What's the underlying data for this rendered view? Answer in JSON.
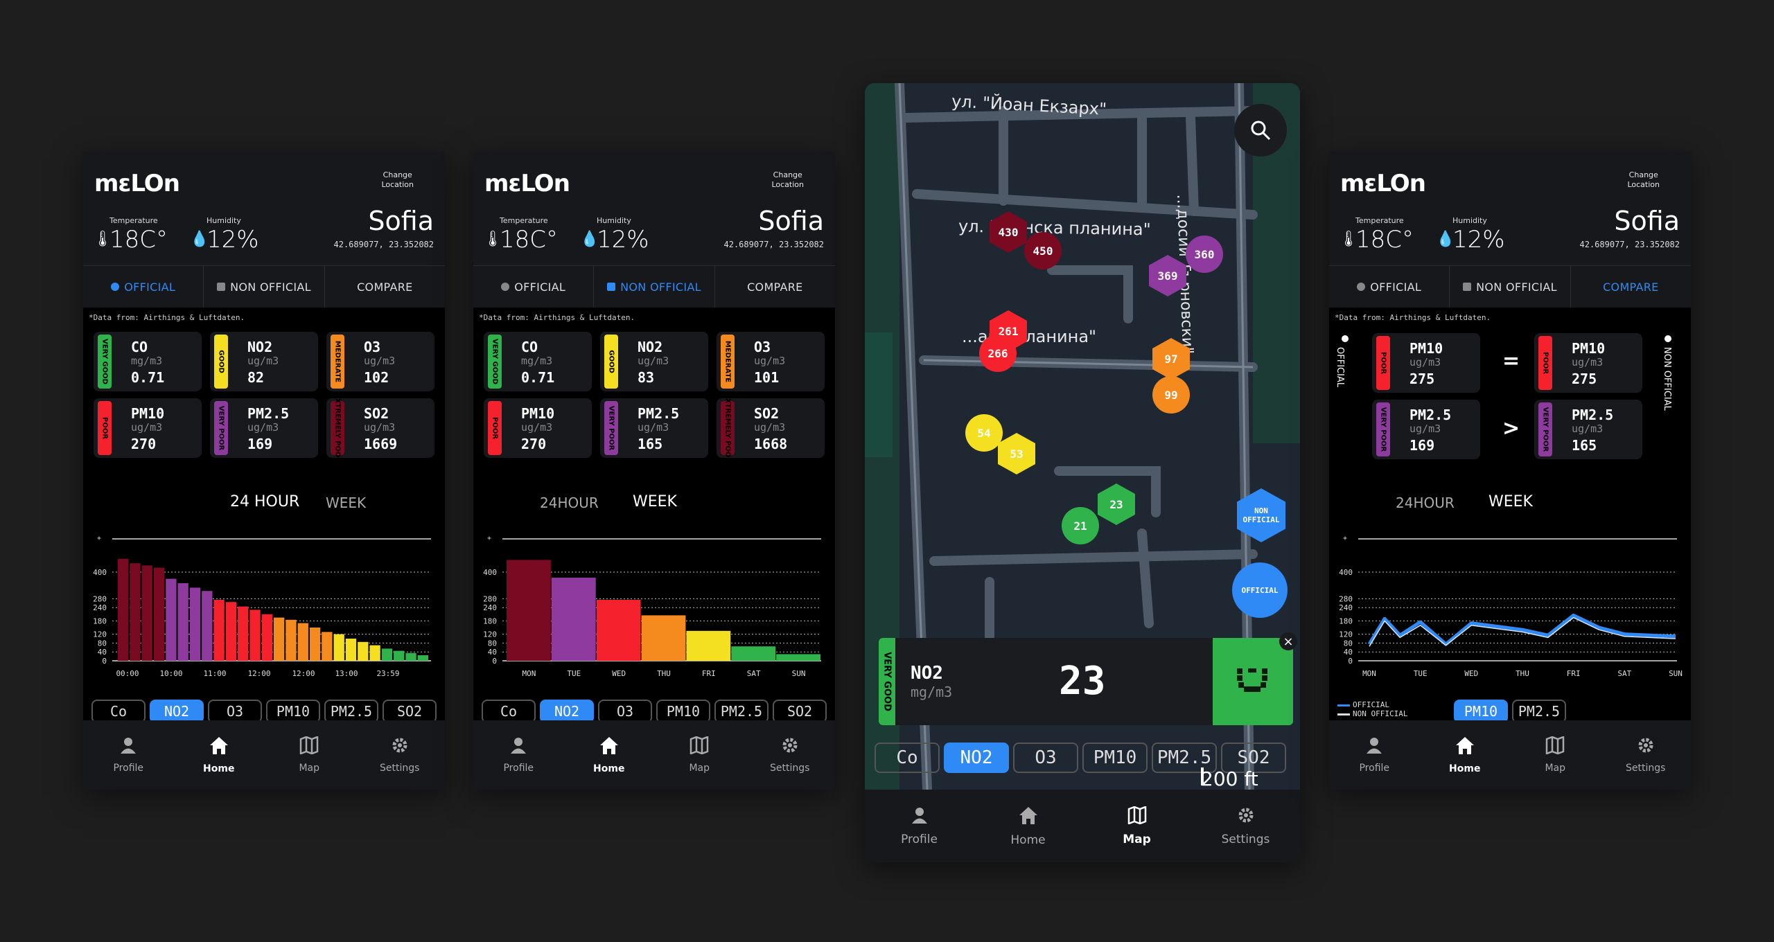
{
  "app": {
    "logo": "mɛLOn",
    "change_location": [
      "Change",
      "Location"
    ],
    "temperature_label": "Temperature",
    "temperature_value": "18C°",
    "humidity_label": "Humidity",
    "humidity_value": "12%",
    "city": "Sofia",
    "coords": "42.689077, 23.352082",
    "tabs": [
      "OFFICIAL",
      "NON OFFICIAL",
      "COMPARE"
    ],
    "data_source": "*Data from: Airthings & Luftdaten.",
    "range_tabs": [
      "24 HOUR",
      "WEEK"
    ],
    "range_tabs_alt": [
      "24HOUR",
      "WEEK"
    ],
    "pollutant_pills": [
      "Co",
      "NO2",
      "O3",
      "PM10",
      "PM2.5",
      "SO2"
    ],
    "nav": [
      "Profile",
      "Home",
      "Map",
      "Settings"
    ],
    "colors": {
      "accent": "#2f8af5",
      "very_good": "#2fb34a",
      "good": "#f4df20",
      "moderate": "#f58b1f",
      "poor": "#f5222d",
      "very_poor": "#8e3a9e",
      "extremely_poor": "#7a0a22"
    }
  },
  "screen1": {
    "cards": [
      {
        "level": "VERY GOOD",
        "name": "CO",
        "unit": "mg/m3",
        "value": "0.71",
        "color": "#2fb34a"
      },
      {
        "level": "GOOD",
        "name": "NO2",
        "unit": "ug/m3",
        "value": "82",
        "color": "#f4df20"
      },
      {
        "level": "MEDERATE",
        "name": "O3",
        "unit": "ug/m3",
        "value": "102",
        "color": "#f58b1f"
      },
      {
        "level": "POOR",
        "name": "PM10",
        "unit": "ug/m3",
        "value": "270",
        "color": "#f5222d"
      },
      {
        "level": "VERY POOR",
        "name": "PM2.5",
        "unit": "ug/m3",
        "value": "169",
        "color": "#8e3a9e"
      },
      {
        "level": "EXTREMELY POOR",
        "name": "SO2",
        "unit": "ug/m3",
        "value": "1669",
        "color": "#7a0a22"
      }
    ],
    "active_range": 0,
    "active_pill": 1
  },
  "screen2": {
    "cards": [
      {
        "level": "VERY GOOD",
        "name": "CO",
        "unit": "mg/m3",
        "value": "0.71",
        "color": "#2fb34a"
      },
      {
        "level": "GOOD",
        "name": "NO2",
        "unit": "ug/m3",
        "value": "83",
        "color": "#f4df20"
      },
      {
        "level": "MEDERATE",
        "name": "O3",
        "unit": "ug/m3",
        "value": "101",
        "color": "#f58b1f"
      },
      {
        "level": "POOR",
        "name": "PM10",
        "unit": "ug/m3",
        "value": "270",
        "color": "#f5222d"
      },
      {
        "level": "VERY POOR",
        "name": "PM2.5",
        "unit": "ug/m3",
        "value": "165",
        "color": "#8e3a9e"
      },
      {
        "level": "EXTREMELY POOR",
        "name": "SO2",
        "unit": "ug/m3",
        "value": "1668",
        "color": "#7a0a22"
      }
    ],
    "active_range": 1,
    "active_pill": 1
  },
  "screen3": {
    "streets": [
      "ул. \"Йоан Екзарх\"",
      "ул. \"...енска планина\"",
      "...ана планина\"",
      "...досий Търновски\""
    ],
    "markers": [
      {
        "value": "430",
        "shape": "hex",
        "color": "#7a0a22"
      },
      {
        "value": "450",
        "shape": "circle",
        "color": "#7a0a22"
      },
      {
        "value": "360",
        "shape": "circle",
        "color": "#8e3a9e"
      },
      {
        "value": "369",
        "shape": "hex",
        "color": "#8e3a9e"
      },
      {
        "value": "261",
        "shape": "hex",
        "color": "#f5222d"
      },
      {
        "value": "266",
        "shape": "circle",
        "color": "#f5222d"
      },
      {
        "value": "97",
        "shape": "hex",
        "color": "#f58b1f"
      },
      {
        "value": "99",
        "shape": "circle",
        "color": "#f58b1f"
      },
      {
        "value": "54",
        "shape": "circle",
        "color": "#f4df20"
      },
      {
        "value": "53",
        "shape": "hex",
        "color": "#f4df20"
      },
      {
        "value": "23",
        "shape": "hex",
        "color": "#2fb34a"
      },
      {
        "value": "21",
        "shape": "circle",
        "color": "#2fb34a"
      }
    ],
    "legend_non_official": [
      "NON",
      "OFFICIAL"
    ],
    "legend_official": "OFFICIAL",
    "popup": {
      "level": "VERY GOOD",
      "name": "NO2",
      "unit": "mg/m3",
      "value": "23",
      "face": "smile-face-icon"
    },
    "scale": "200 ft",
    "active_pill": 1
  },
  "screen4": {
    "side_official": "OFFICIAL",
    "side_non_official": "NON OFFICIAL",
    "left_cards": [
      {
        "level": "POOR",
        "name": "PM10",
        "unit": "ug/m3",
        "value": "275",
        "color": "#f5222d"
      },
      {
        "level": "VERY POOR",
        "name": "PM2.5",
        "unit": "ug/m3",
        "value": "169",
        "color": "#8e3a9e"
      }
    ],
    "right_cards": [
      {
        "level": "POOR",
        "name": "PM10",
        "unit": "ug/m3",
        "value": "275",
        "color": "#f5222d"
      },
      {
        "level": "VERY POOR",
        "name": "PM2.5",
        "unit": "ug/m3",
        "value": "165",
        "color": "#8e3a9e"
      }
    ],
    "operators": [
      "=",
      ">"
    ],
    "legend": [
      "OFFICIAL",
      "NON OFFICIAL"
    ],
    "pills": [
      "PM10",
      "PM2.5"
    ],
    "active_range": 1
  },
  "chart_data": [
    {
      "type": "bar",
      "screen": "24 hour",
      "x_ticks": [
        "00:00",
        "10:00",
        "11:00",
        "12:00",
        "12:00",
        "13:00",
        "23:59"
      ],
      "y_ticks": [
        0,
        40,
        80,
        120,
        180,
        240,
        280,
        400
      ],
      "values": [
        460,
        440,
        430,
        420,
        370,
        350,
        330,
        315,
        275,
        265,
        245,
        230,
        210,
        195,
        185,
        170,
        150,
        130,
        120,
        100,
        85,
        70,
        55,
        45,
        35,
        25
      ],
      "colors": [
        "#7a0a22",
        "#7a0a22",
        "#7a0a22",
        "#7a0a22",
        "#8e3a9e",
        "#8e3a9e",
        "#8e3a9e",
        "#8e3a9e",
        "#f5222d",
        "#f5222d",
        "#f5222d",
        "#f5222d",
        "#f5222d",
        "#f58b1f",
        "#f58b1f",
        "#f58b1f",
        "#f58b1f",
        "#f58b1f",
        "#f4df20",
        "#f4df20",
        "#f4df20",
        "#f4df20",
        "#2fb34a",
        "#2fb34a",
        "#2fb34a",
        "#2fb34a"
      ],
      "ylim": [
        0,
        500
      ]
    },
    {
      "type": "bar",
      "screen": "week",
      "categories": [
        "MON",
        "TUE",
        "WED",
        "THU",
        "FRI",
        "SAT",
        "SUN"
      ],
      "values": [
        455,
        375,
        275,
        205,
        135,
        65,
        30
      ],
      "colors": [
        "#7a0a22",
        "#8e3a9e",
        "#f5222d",
        "#f58b1f",
        "#f4df20",
        "#2fb34a",
        "#2fb34a"
      ],
      "y_ticks": [
        0,
        40,
        80,
        120,
        180,
        240,
        280,
        400
      ],
      "ylim": [
        0,
        500
      ]
    },
    {
      "type": "line",
      "screen": "compare week",
      "categories": [
        "MON",
        "TUE",
        "WED",
        "THU",
        "FRI",
        "SAT",
        "SUN"
      ],
      "y_ticks": [
        0,
        40,
        80,
        120,
        180,
        240,
        280,
        400
      ],
      "series": [
        {
          "name": "OFFICIAL",
          "x": [
            0,
            0.3,
            0.6,
            1,
            1.5,
            2,
            3,
            3.5,
            4,
            4.5,
            5,
            6
          ],
          "values": [
            75,
            190,
            115,
            175,
            75,
            170,
            140,
            115,
            205,
            150,
            120,
            110
          ]
        },
        {
          "name": "NON OFFICIAL",
          "x": [
            0,
            0.3,
            0.6,
            1,
            1.5,
            2,
            3,
            3.5,
            4,
            4.5,
            5,
            6
          ],
          "values": [
            65,
            180,
            105,
            160,
            70,
            160,
            130,
            105,
            195,
            140,
            110,
            100
          ]
        }
      ],
      "ylim": [
        0,
        500
      ]
    }
  ]
}
